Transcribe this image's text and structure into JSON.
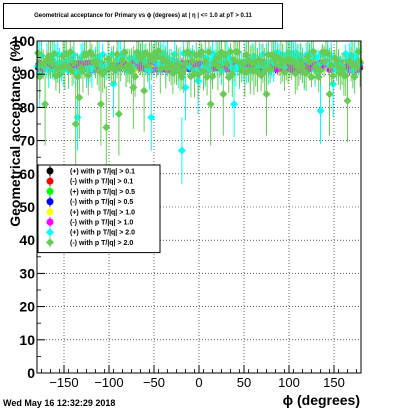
{
  "header": {
    "title": "Geometrical acceptance for Primary vs ϕ (degrees) at | η | <= 1.0 at pT > 0.11"
  },
  "footer": {
    "timestamp": "Wed May 16 12:32:29 2018"
  },
  "chart_data": {
    "type": "scatter",
    "xlabel": "ϕ (degrees)",
    "ylabel": "Geometrical acceptance (%)",
    "xlim": [
      -180,
      180
    ],
    "ylim": [
      0,
      100
    ],
    "xticks": [
      -150,
      -100,
      -50,
      0,
      50,
      100,
      150
    ],
    "yticks": [
      0,
      10,
      20,
      30,
      40,
      50,
      60,
      70,
      80,
      90,
      100
    ],
    "grid": true,
    "legend_position": "left-middle",
    "series": [
      {
        "name": "(+) with p T/|q| > 0.1",
        "color": "#000000",
        "marker": "circle",
        "mean": 92.5,
        "spread": 0.8,
        "err": 0.8,
        "outliers": []
      },
      {
        "name": "(-) with p T/|q| > 0.1",
        "color": "#ff0000",
        "marker": "circle",
        "mean": 92.3,
        "spread": 0.8,
        "err": 0.8,
        "outliers": []
      },
      {
        "name": "(+) with p T/|q| > 0.5",
        "color": "#00ff00",
        "marker": "circle",
        "mean": 92.7,
        "spread": 1.0,
        "err": 1.0,
        "outliers": []
      },
      {
        "name": "(-) with p T/|q| > 0.5",
        "color": "#0000ff",
        "marker": "circle",
        "mean": 92.4,
        "spread": 1.0,
        "err": 1.0,
        "outliers": []
      },
      {
        "name": "(+) with p T/|q| > 1.0",
        "color": "#ffff00",
        "marker": "circle",
        "mean": 92.8,
        "spread": 1.3,
        "err": 1.2,
        "outliers": []
      },
      {
        "name": "(-) with p T/|q| > 1.0",
        "color": "#ff00ff",
        "marker": "circle",
        "mean": 92.4,
        "spread": 1.3,
        "err": 1.2,
        "outliers": []
      },
      {
        "name": "(+) with p T/|q| > 2.0",
        "color": "#00ffff",
        "marker": "diamond",
        "mean": 93.5,
        "spread": 3.0,
        "err": 4.0,
        "outliers": [
          [
            -176,
            90
          ],
          [
            -135,
            77
          ],
          [
            -95,
            87
          ],
          [
            -52,
            77
          ],
          [
            -18,
            67
          ],
          [
            -14,
            86
          ],
          [
            0,
            88
          ],
          [
            40,
            81
          ],
          [
            135,
            79
          ],
          [
            150,
            87
          ]
        ]
      },
      {
        "name": "(-) with p T/|q| > 2.0",
        "color": "#66cc55",
        "marker": "diamond",
        "mean": 93.0,
        "spread": 4.0,
        "err": 5.0,
        "outliers": [
          [
            -170,
            81
          ],
          [
            -137,
            75
          ],
          [
            -133,
            83
          ],
          [
            -108,
            81
          ],
          [
            -103,
            74
          ],
          [
            -88,
            78
          ],
          [
            -72,
            86
          ],
          [
            -60,
            85
          ],
          [
            13,
            81
          ],
          [
            28,
            84
          ],
          [
            75,
            84
          ],
          [
            145,
            84
          ],
          [
            165,
            82
          ]
        ]
      }
    ]
  }
}
